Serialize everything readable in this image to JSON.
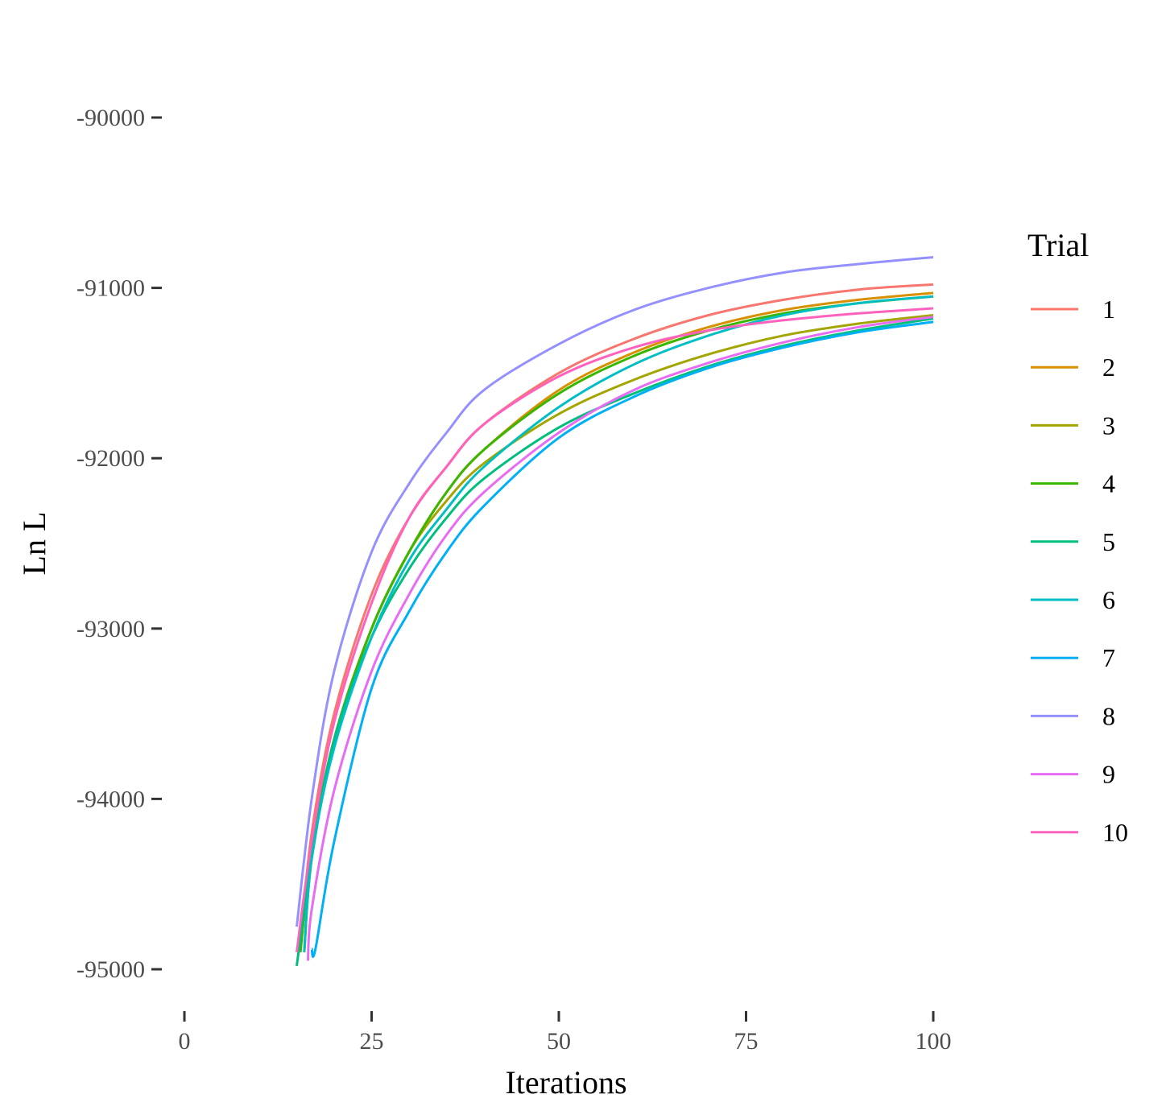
{
  "chart_data": {
    "type": "line",
    "title": "",
    "xlabel": "Iterations",
    "ylabel": "Ln L",
    "xlim": [
      0,
      100
    ],
    "ylim": [
      -95250,
      -89400
    ],
    "x_ticks": [
      0,
      25,
      50,
      75,
      100
    ],
    "y_ticks": [
      -95000,
      -94000,
      -93000,
      -92000,
      -91000,
      -90000
    ],
    "x_tick_labels": [
      "0",
      "25",
      "50",
      "75",
      "100"
    ],
    "y_tick_labels": [
      "-95000",
      "-94000",
      "-93000",
      "-92000",
      "-91000",
      "-90000"
    ],
    "grid": false,
    "legend": {
      "title": "Trial",
      "position": "right"
    },
    "x": [
      15,
      17,
      20,
      25,
      30,
      35,
      40,
      50,
      60,
      70,
      80,
      90,
      100
    ],
    "series": [
      {
        "name": "1",
        "color": "#F8766D",
        "start_x": 15.5,
        "values": [
          -94850,
          -94200,
          -93500,
          -92800,
          -92350,
          -92050,
          -91800,
          -91500,
          -91300,
          -91160,
          -91070,
          -91010,
          -90980
        ]
      },
      {
        "name": "2",
        "color": "#D89000",
        "start_x": 16,
        "values": [
          -94900,
          -94350,
          -93650,
          -93000,
          -92550,
          -92200,
          -91950,
          -91600,
          -91380,
          -91230,
          -91130,
          -91070,
          -91030
        ]
      },
      {
        "name": "3",
        "color": "#A3A500",
        "start_x": 16,
        "values": [
          -94900,
          -94350,
          -93650,
          -93000,
          -92550,
          -92250,
          -92030,
          -91740,
          -91540,
          -91390,
          -91280,
          -91210,
          -91160
        ]
      },
      {
        "name": "4",
        "color": "#39B600",
        "start_x": 15.5,
        "values": [
          -94900,
          -94300,
          -93650,
          -93000,
          -92550,
          -92200,
          -91950,
          -91620,
          -91400,
          -91250,
          -91150,
          -91090,
          -91050
        ]
      },
      {
        "name": "5",
        "color": "#00BF7D",
        "start_x": 15,
        "values": [
          -94980,
          -94350,
          -93650,
          -93050,
          -92650,
          -92350,
          -92120,
          -91820,
          -91620,
          -91460,
          -91340,
          -91250,
          -91180
        ]
      },
      {
        "name": "6",
        "color": "#00BFC4",
        "start_x": 16,
        "values": [
          -94900,
          -94350,
          -93700,
          -93050,
          -92600,
          -92300,
          -92050,
          -91700,
          -91450,
          -91280,
          -91160,
          -91090,
          -91050
        ]
      },
      {
        "name": "7",
        "color": "#00B0F6",
        "start_x": 17,
        "values": [
          -94880,
          -94880,
          -94250,
          -93350,
          -92900,
          -92550,
          -92280,
          -91880,
          -91640,
          -91470,
          -91350,
          -91260,
          -91200
        ]
      },
      {
        "name": "8",
        "color": "#9590FF",
        "start_x": 15,
        "values": [
          -94750,
          -94000,
          -93250,
          -92550,
          -92150,
          -91850,
          -91600,
          -91330,
          -91130,
          -91000,
          -90910,
          -90860,
          -90820
        ]
      },
      {
        "name": "9",
        "color": "#E76BF3",
        "start_x": 16.5,
        "values": [
          -94950,
          -94650,
          -93950,
          -93250,
          -92800,
          -92450,
          -92200,
          -91850,
          -91600,
          -91440,
          -91320,
          -91230,
          -91170
        ]
      },
      {
        "name": "10",
        "color": "#FF62BC",
        "start_x": 15,
        "values": [
          -94900,
          -94250,
          -93550,
          -92850,
          -92350,
          -92050,
          -91800,
          -91520,
          -91350,
          -91250,
          -91190,
          -91150,
          -91120
        ]
      }
    ]
  }
}
